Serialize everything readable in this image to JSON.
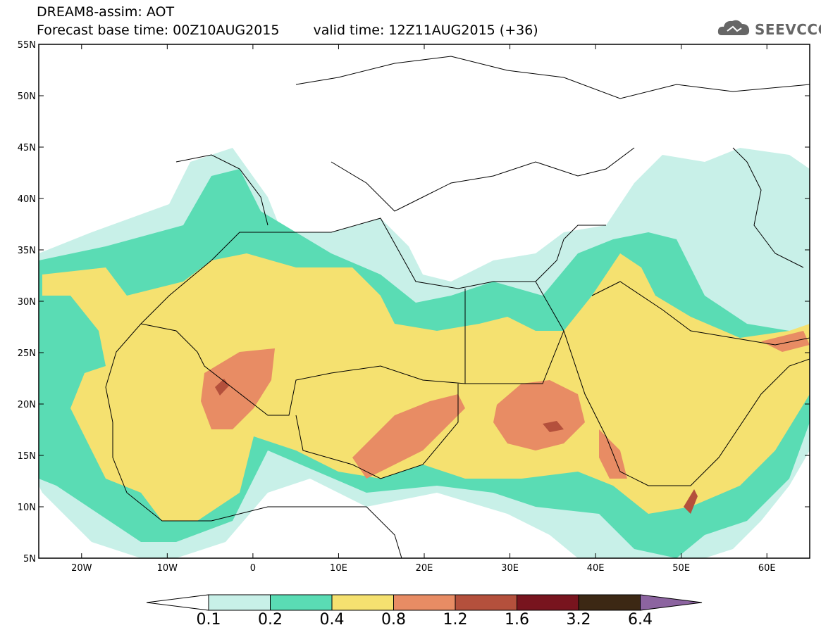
{
  "header": {
    "title_line1": "DREAM8-assim: AOT",
    "base_time": "Forecast base time: 00Z10AUG2015",
    "valid_time": "valid time: 12Z11AUG2015 (+36)"
  },
  "logo": {
    "text": "SEEVCCC",
    "icon": "cloud-icon"
  },
  "map": {
    "lat_ticks": [
      "55N",
      "50N",
      "45N",
      "40N",
      "35N",
      "30N",
      "25N",
      "20N",
      "15N",
      "10N",
      "5N"
    ],
    "lon_ticks": [
      "20W",
      "10W",
      "0",
      "10E",
      "20E",
      "30E",
      "40E",
      "50E",
      "60E"
    ],
    "lat_range": [
      5,
      55
    ],
    "lon_range": [
      -25,
      65
    ]
  },
  "colorbar": {
    "labels": [
      "0.1",
      "0.2",
      "0.4",
      "0.8",
      "1.2",
      "1.6",
      "3.2",
      "6.4"
    ],
    "colors": [
      "#c8f0e8",
      "#5adcb4",
      "#f5e170",
      "#e88c64",
      "#b4503c",
      "#78141e",
      "#3c2814",
      "#8c64a0"
    ],
    "below_color": "#ffffff"
  }
}
